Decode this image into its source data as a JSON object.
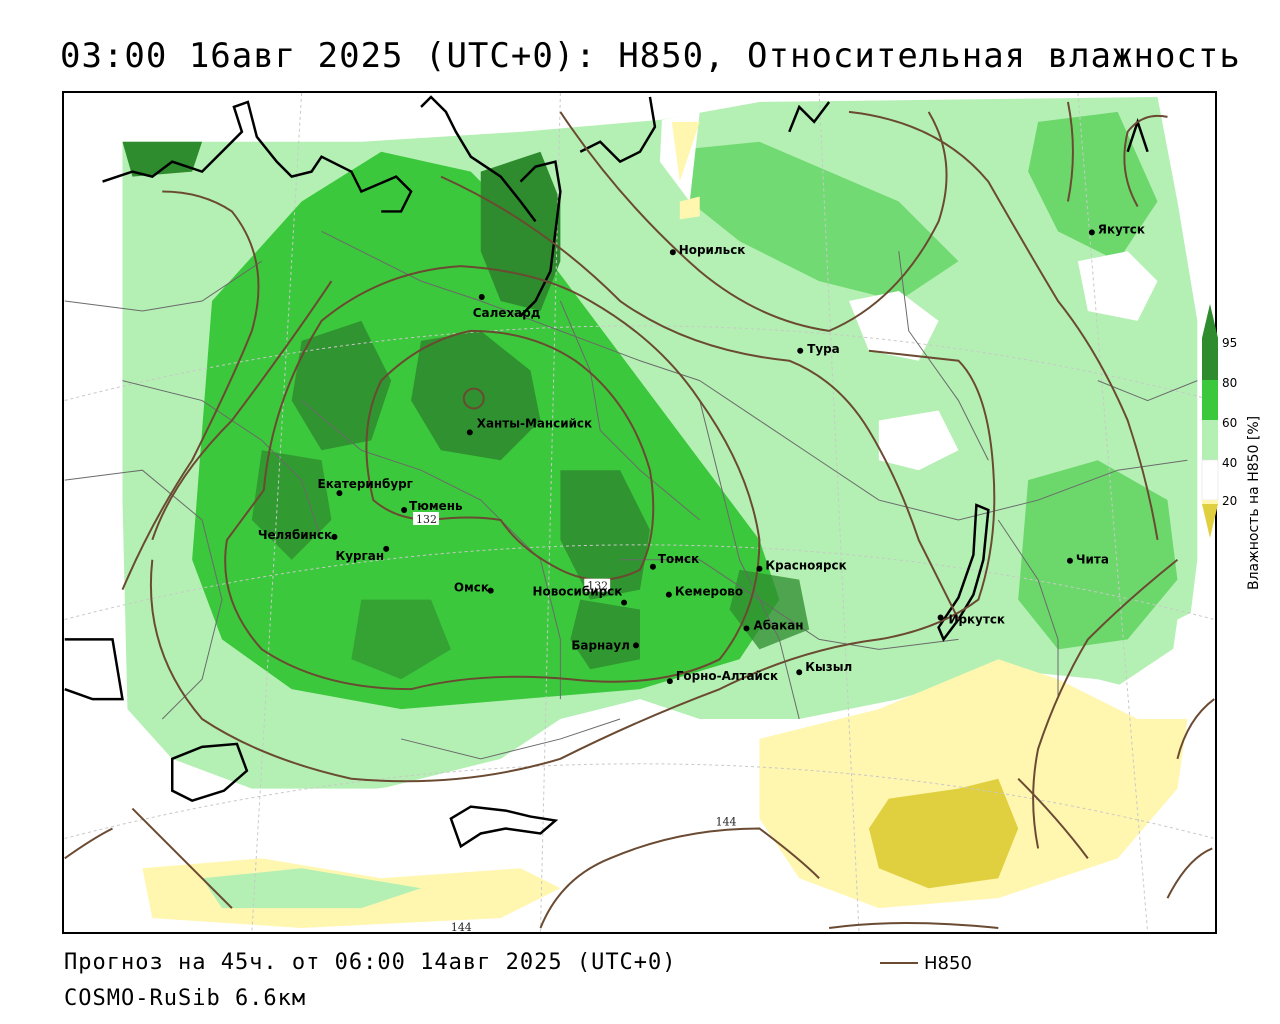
{
  "title": "03:00 16авг 2025 (UTC+0): H850, Относительная влажность",
  "forecast_line": "Прогноз на 45ч. от 06:00 14авг 2025 (UTC+0)",
  "model_line": "COSMO-RuSib 6.6км",
  "legend": {
    "line_label": "H850",
    "line_color": "#6b4a32"
  },
  "colorbar": {
    "title": "Влажность на H850 [%]",
    "ticks": [
      "95",
      "80",
      "60",
      "40",
      "20"
    ],
    "colors": {
      "above_95": "#2e8b2e",
      "c80_95": "#3cc83c",
      "c60_80": "#b4f0b4",
      "c40_60": "#ffffff",
      "c20_40": "#fff6b0",
      "below_20": "#e0d040"
    }
  },
  "cities": [
    {
      "name": "Якутск"
    },
    {
      "name": "Норильск"
    },
    {
      "name": "Салехард"
    },
    {
      "name": "Тура"
    },
    {
      "name": "Ханты-Мансийск"
    },
    {
      "name": "Екатеринбург"
    },
    {
      "name": "Тюмень"
    },
    {
      "name": "Челябинск"
    },
    {
      "name": "Курган"
    },
    {
      "name": "Омск"
    },
    {
      "name": "Новосибирск"
    },
    {
      "name": "Томск"
    },
    {
      "name": "Кемерово"
    },
    {
      "name": "Красноярск"
    },
    {
      "name": "Абакан"
    },
    {
      "name": "Барнаул"
    },
    {
      "name": "Горно-Алтайск"
    },
    {
      "name": "Кызыл"
    },
    {
      "name": "Иркутск"
    },
    {
      "name": "Чита"
    }
  ],
  "contour_labels": [
    "132",
    "132",
    "144",
    "144"
  ]
}
